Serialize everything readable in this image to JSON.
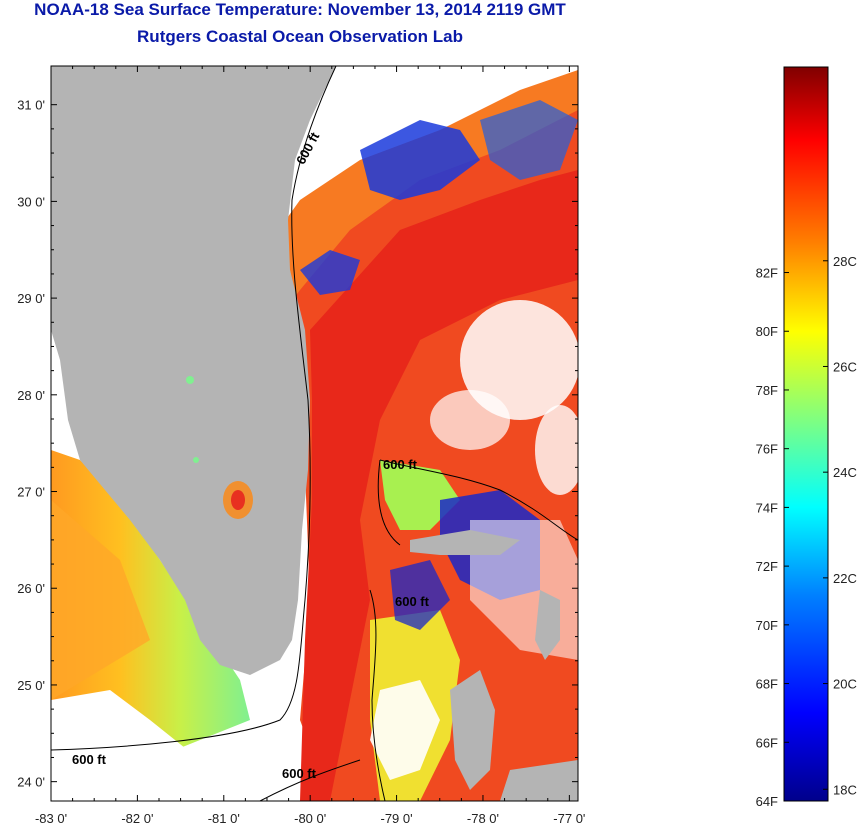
{
  "header": {
    "title": "NOAA-18 Sea Surface Temperature:  November 13, 2014 2119 GMT",
    "subtitle": "Rutgers Coastal Ocean Observation Lab"
  },
  "map": {
    "lat_labels": [
      "31 0'",
      "30 0'",
      "29 0'",
      "28 0'",
      "27 0'",
      "26 0'",
      "25 0'",
      "24 0'"
    ],
    "lon_labels": [
      "-83 0'",
      "-82 0'",
      "-81 0'",
      "-80 0'",
      "-79 0'",
      "-78 0'",
      "-77 0'"
    ],
    "lat_range": [
      23.8,
      31.4
    ],
    "lon_range": [
      -83.0,
      -76.9
    ],
    "contour_labels": [
      "600 ft",
      "600 ft",
      "600 ft",
      "600 ft",
      "600 ft"
    ]
  },
  "colorbar": {
    "fahrenheit_labels": [
      "82F",
      "80F",
      "78F",
      "76F",
      "74F",
      "72F",
      "70F",
      "68F",
      "66F",
      "64F"
    ],
    "celsius_labels": [
      "28C",
      "26C",
      "24C",
      "22C",
      "20C",
      "18C"
    ],
    "range_f": [
      64,
      89
    ],
    "colors": [
      "#00008b",
      "#0000ff",
      "#0080ff",
      "#00ffff",
      "#80ff80",
      "#ffff00",
      "#ff8000",
      "#ff0000",
      "#800000"
    ]
  }
}
